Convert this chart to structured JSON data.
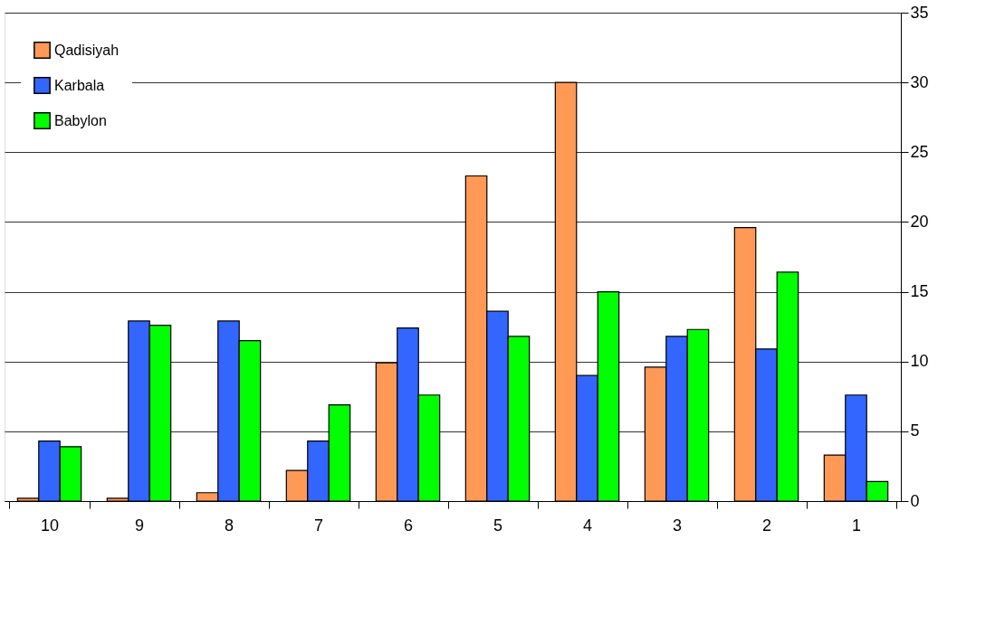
{
  "chart_data": {
    "type": "bar",
    "categories": [
      "10",
      "9",
      "8",
      "7",
      "6",
      "5",
      "4",
      "3",
      "2",
      "1"
    ],
    "series": [
      {
        "name": "Qadisiyah",
        "color": "#ff9955",
        "values": [
          0.2,
          0.2,
          0.6,
          2.2,
          9.9,
          23.3,
          30,
          9.6,
          19.6,
          3.3
        ]
      },
      {
        "name": "Karbala",
        "color": "#3366ff",
        "values": [
          4.3,
          12.9,
          12.9,
          4.3,
          12.4,
          13.6,
          9.0,
          11.8,
          10.9,
          7.6
        ]
      },
      {
        "name": "Babylon",
        "color": "#00ff00",
        "values": [
          3.9,
          12.6,
          11.5,
          6.9,
          7.6,
          11.8,
          15,
          12.3,
          16.4,
          1.4
        ]
      }
    ],
    "ylim": [
      0,
      35
    ],
    "yticks": [
      0,
      5,
      10,
      15,
      20,
      25,
      30,
      35
    ],
    "grid": "y",
    "legend": "top left"
  }
}
